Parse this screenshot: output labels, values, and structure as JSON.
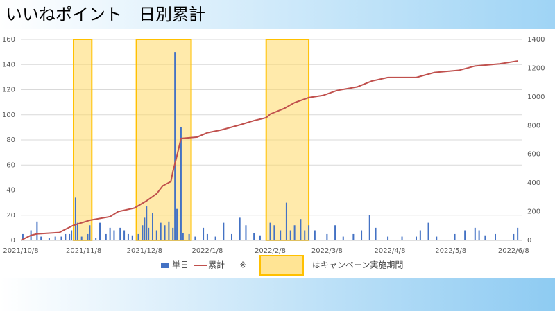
{
  "header": {
    "title": "いいねポイント　日別累計"
  },
  "chart_data": {
    "type": "bar-line",
    "xlim": [
      0,
      247
    ],
    "xticks": [
      {
        "value": 0,
        "label": "2021/10/8"
      },
      {
        "value": 31,
        "label": "2021/11/8"
      },
      {
        "value": 61,
        "label": "2021/12/8"
      },
      {
        "value": 92,
        "label": "2022/1/8"
      },
      {
        "value": 123,
        "label": "2022/2/8"
      },
      {
        "value": 151,
        "label": "2022/3/8"
      },
      {
        "value": 182,
        "label": "2022/4/8"
      },
      {
        "value": 212,
        "label": "2022/5/8"
      },
      {
        "value": 243,
        "label": "2022/6/8"
      }
    ],
    "ylim": [
      0,
      160
    ],
    "yticks": [
      0,
      20,
      40,
      60,
      80,
      100,
      120,
      140,
      160
    ],
    "y2lim": [
      0,
      1400
    ],
    "y2ticks": [
      0,
      200,
      400,
      600,
      800,
      1000,
      1200,
      1400
    ],
    "series": [
      {
        "name": "単日",
        "color": "#4472c4",
        "kind": "bar",
        "x": [
          1,
          5,
          8,
          10,
          14,
          17,
          20,
          22,
          24,
          25,
          27,
          28,
          30,
          33,
          34,
          37,
          39,
          42,
          44,
          46,
          49,
          51,
          53,
          55,
          58,
          60,
          61,
          62,
          63,
          65,
          67,
          69,
          71,
          73,
          75,
          76,
          77,
          79,
          80,
          83,
          86,
          90,
          92,
          96,
          100,
          104,
          108,
          111,
          115,
          118,
          123,
          125,
          128,
          131,
          133,
          135,
          138,
          140,
          142,
          145,
          151,
          155,
          159,
          164,
          168,
          172,
          175,
          181,
          188,
          195,
          197,
          201,
          205,
          214,
          219,
          224,
          226,
          229,
          234,
          243,
          245
        ],
        "values": [
          5,
          8,
          15,
          3,
          2,
          3,
          3,
          5,
          5,
          8,
          34,
          14,
          3,
          5,
          12,
          2,
          14,
          5,
          10,
          8,
          10,
          8,
          5,
          4,
          5,
          12,
          18,
          27,
          10,
          22,
          8,
          14,
          12,
          15,
          10,
          150,
          25,
          90,
          6,
          5,
          3,
          10,
          5,
          3,
          14,
          5,
          18,
          12,
          6,
          4,
          14,
          12,
          8,
          30,
          8,
          12,
          17,
          8,
          12,
          8,
          5,
          12,
          3,
          5,
          8,
          20,
          10,
          3,
          3,
          3,
          8,
          14,
          3,
          5,
          8,
          10,
          8,
          4,
          5,
          5,
          10
        ]
      },
      {
        "name": "累計",
        "color": "#c0504d",
        "kind": "line",
        "axis": "y2",
        "x": [
          0,
          5,
          8,
          19,
          21,
          26,
          34,
          44,
          48,
          56,
          62,
          67,
          70,
          74,
          75,
          77,
          78,
          79,
          87,
          92,
          99,
          108,
          115,
          121,
          123,
          130,
          135,
          142,
          149,
          156,
          166,
          173,
          181,
          195,
          204,
          216,
          224,
          236,
          245
        ],
        "values": [
          0,
          35,
          45,
          55,
          70,
          105,
          140,
          165,
          200,
          225,
          275,
          325,
          380,
          410,
          480,
          590,
          650,
          710,
          720,
          750,
          770,
          805,
          835,
          855,
          880,
          920,
          960,
          995,
          1010,
          1045,
          1070,
          1110,
          1135,
          1135,
          1170,
          1185,
          1215,
          1230,
          1250
        ]
      }
    ],
    "campaign_periods": [
      {
        "start": 26,
        "end": 35
      },
      {
        "start": 57,
        "end": 84
      },
      {
        "start": 121,
        "end": 142
      }
    ],
    "campaign_color": "#ffd966",
    "legend_note_mark": "※",
    "legend_note": "はキャンペーン実施期間"
  }
}
